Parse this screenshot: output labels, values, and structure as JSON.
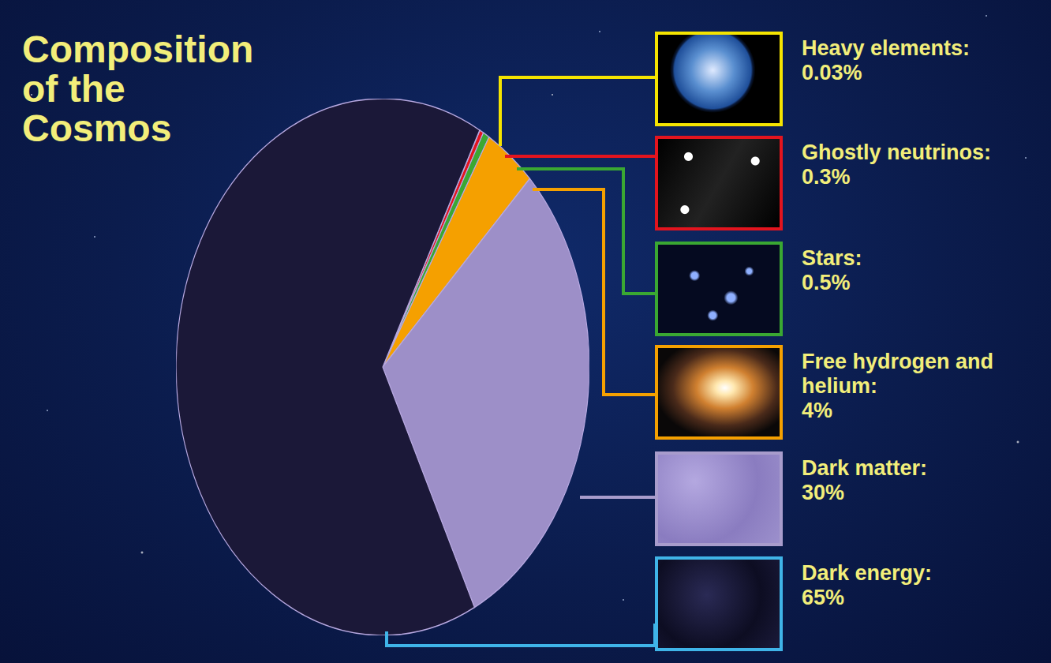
{
  "chart_data": {
    "type": "pie",
    "title": "Composition of the Cosmos",
    "categories": [
      "Heavy elements:",
      "Ghostly neutrinos:",
      "Stars:",
      "Free hydrogen and helium:",
      "Dark matter:",
      "Dark energy:"
    ],
    "values": [
      0.03,
      0.3,
      0.5,
      4,
      30,
      65
    ],
    "value_labels": [
      "0.03%",
      "0.3%",
      "0.5%",
      "4%",
      "30%",
      "65%"
    ],
    "colors": [
      "#f5e400",
      "#e3141e",
      "#3aa832",
      "#f5a000",
      "#9d8fc8",
      "#1b1838"
    ]
  }
}
